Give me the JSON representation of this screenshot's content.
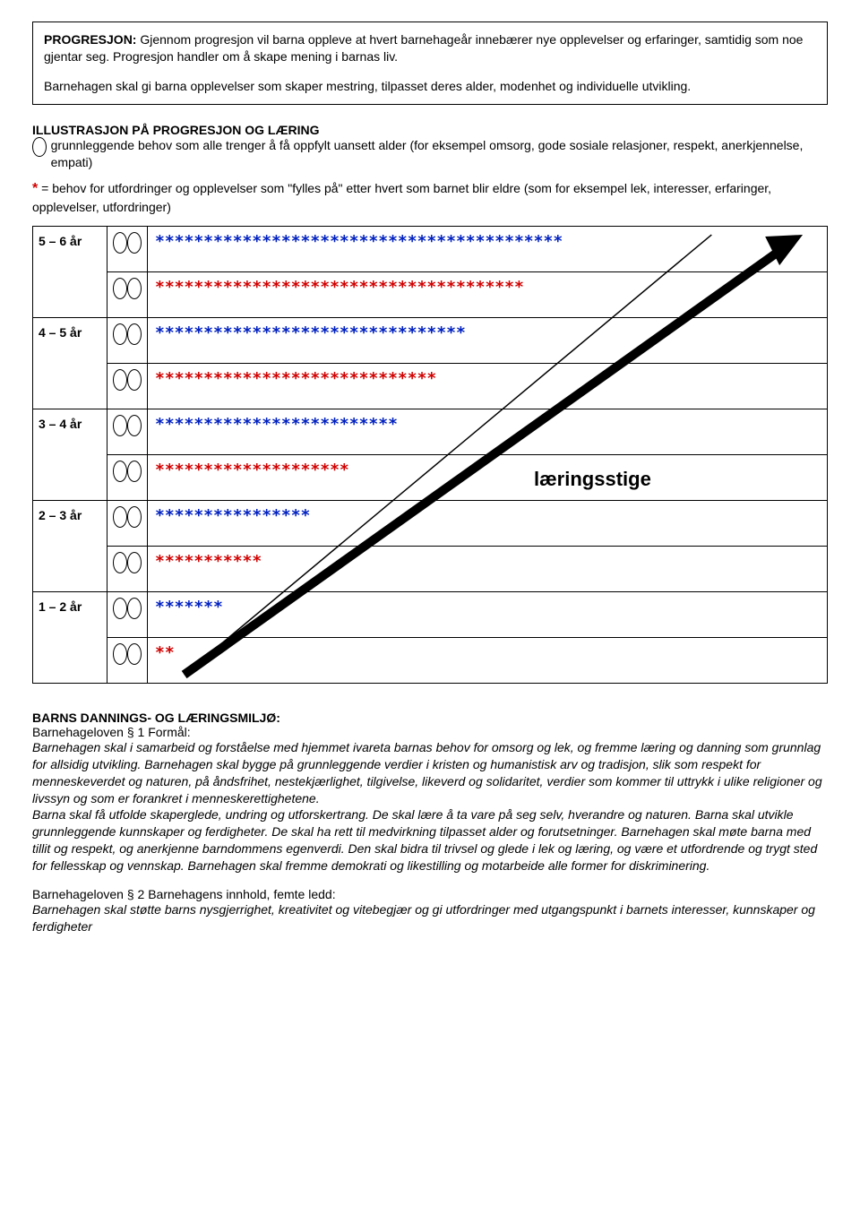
{
  "box": {
    "heading_prefix": "PROGRESJON: ",
    "p1": "Gjennom progresjon vil barna oppleve at hvert barnehageår innebærer nye opplevelser og erfaringer, samtidig som noe gjentar seg. Progresjon handler om å skape mening i barnas liv.",
    "p2": "Barnehagen skal gi barna opplevelser som skaper mestring, tilpasset deres alder, modenhet og individuelle utvikling."
  },
  "illus": {
    "heading": "ILLUSTRASJON PÅ PROGRESJON OG LÆRING",
    "def1_after_oval": " grunnleggende behov som alle trenger å få oppfylt uansett alder  (for eksempel omsorg, gode sosiale relasjoner, respekt, anerkjennelse, empati)",
    "def2_red_star": "*",
    "def2_text": " = behov for utfordringer og opplevelser som \"fylles på\" etter hvert som barnet blir eldre (som for eksempel lek, interesser, erfaringer, opplevelser, utfordringer)"
  },
  "chart": {
    "ladder_label": "læringsstige",
    "rows": [
      {
        "age": "5 – 6 år",
        "top_stars": "******************************************",
        "bot_stars": "**************************************"
      },
      {
        "age": "4 – 5 år",
        "top_stars": "********************************",
        "bot_stars": "*****************************"
      },
      {
        "age": "3 – 4 år",
        "top_stars": "*************************",
        "bot_stars": "********************"
      },
      {
        "age": "2 – 3 år",
        "top_stars": "****************",
        "bot_stars": "***********"
      },
      {
        "age": "1 – 2 år",
        "top_stars": "*******",
        "bot_stars": "**"
      }
    ],
    "arrow_color": "#000000",
    "star_color_top": "#0020c0",
    "star_color_bot": "#d10000"
  },
  "bottom": {
    "h1": "BARNS DANNINGS- OG LÆRINGSMILJØ:",
    "l1": "Barnehageloven § 1 Formål:",
    "p_italic": "Barnehagen skal i samarbeid og forståelse med hjemmet ivareta barnas behov for omsorg og lek, og fremme læring og danning som grunnlag for allsidig utvikling. Barnehagen skal bygge på grunnleggende verdier i kristen og humanistisk arv og tradisjon, slik som respekt for menneskeverdet og naturen, på åndsfrihet, nestekjærlighet, tilgivelse, likeverd og solidaritet, verdier som kommer til uttrykk i ulike religioner og livssyn og som er forankret i menneskerettighetene.",
    "p_mid": "Barna skal få utfolde skaperglede, undring og utforskertrang. De skal lære å ta vare på seg selv, hverandre og naturen. Barna skal utvikle grunnleggende kunnskaper og ferdigheter. De skal ha rett til medvirkning tilpasset alder og forutsetninger. Barnehagen skal møte barna med tillit og respekt, og anerkjenne barndommens egenverdi. Den skal bidra til trivsel og glede i lek og læring, og være et utfordrende og trygt sted for fellesskap og vennskap. Barnehagen skal fremme demokrati og likestilling og motarbeide alle former for diskriminering.",
    "l2": "Barnehageloven § 2 Barnehagens innhold, femte ledd:",
    "p_last": "Barnehagen skal støtte barns nysgjerrighet, kreativitet og vitebegjær og gi utfordringer med utgangspunkt i barnets interesser, kunnskaper og ferdigheter"
  }
}
